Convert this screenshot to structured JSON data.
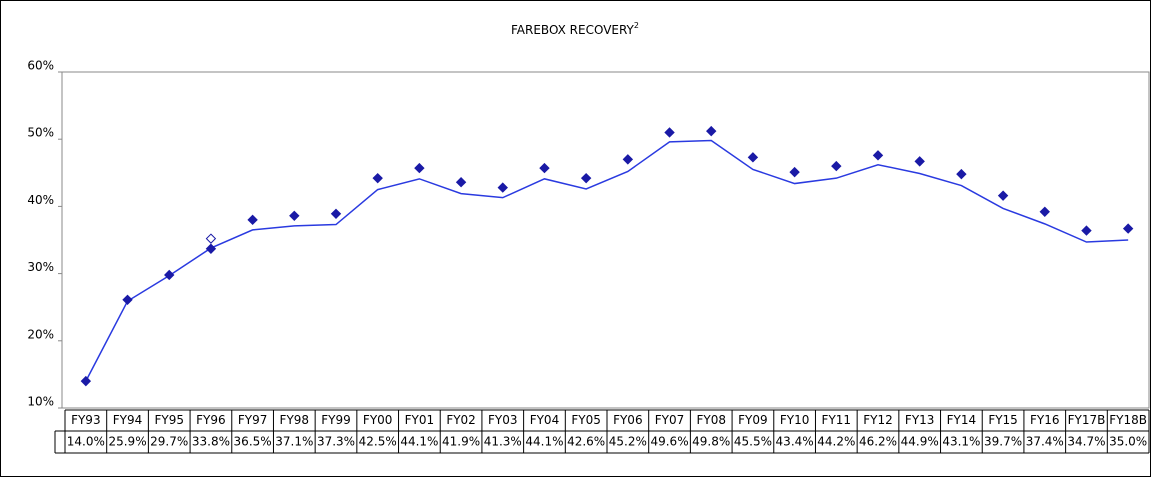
{
  "chart_data": {
    "type": "line",
    "title": "FAREBOX RECOVERY",
    "title_superscript": "2",
    "categories": [
      "FY93",
      "FY94",
      "FY95",
      "FY96",
      "FY97",
      "FY98",
      "FY99",
      "FY00",
      "FY01",
      "FY02",
      "FY03",
      "FY04",
      "FY05",
      "FY06",
      "FY07",
      "FY08",
      "FY09",
      "FY10",
      "FY11",
      "FY12",
      "FY13",
      "FY14",
      "FY15",
      "FY16",
      "FY17B",
      "FY18B"
    ],
    "series": [
      {
        "color": "#2a3ae0",
        "style": "line",
        "values": [
          14.0,
          25.9,
          29.7,
          33.8,
          36.5,
          37.1,
          37.3,
          42.5,
          44.1,
          41.9,
          41.3,
          44.1,
          42.6,
          45.2,
          49.6,
          49.8,
          45.5,
          43.4,
          44.2,
          46.2,
          44.9,
          43.1,
          39.7,
          37.4,
          34.7,
          35.0
        ],
        "value_labels": [
          "14.0%",
          "25.9%",
          "29.7%",
          "33.8%",
          "36.5%",
          "37.1%",
          "37.3%",
          "42.5%",
          "44.1%",
          "41.9%",
          "41.3%",
          "44.1%",
          "42.6%",
          "45.2%",
          "49.6%",
          "49.8%",
          "45.5%",
          "43.4%",
          "44.2%",
          "46.2%",
          "44.9%",
          "43.1%",
          "39.7%",
          "37.4%",
          "34.7%",
          "35.0%"
        ]
      },
      {
        "color": "#1a1aa6",
        "style": "marker",
        "values": [
          14.0,
          26.1,
          29.8,
          33.7,
          38.0,
          38.6,
          38.9,
          44.2,
          45.7,
          43.6,
          42.8,
          45.7,
          44.2,
          47.0,
          51.0,
          51.2,
          47.3,
          45.1,
          46.0,
          47.6,
          46.7,
          44.8,
          41.6,
          39.2,
          36.4,
          36.7
        ]
      },
      {
        "color": "#1a1aa6",
        "style": "hollow-marker",
        "values": [
          null,
          null,
          null,
          35.2,
          null,
          null,
          null,
          null,
          null,
          null,
          null,
          null,
          null,
          null,
          null,
          null,
          null,
          null,
          null,
          null,
          null,
          null,
          null,
          null,
          null,
          null
        ]
      }
    ],
    "ylim": [
      10,
      60
    ],
    "yticks": [
      {
        "value": 10,
        "label": "10%"
      },
      {
        "value": 20,
        "label": "20%"
      },
      {
        "value": 30,
        "label": "30%"
      },
      {
        "value": 40,
        "label": "40%"
      },
      {
        "value": 50,
        "label": "50%"
      },
      {
        "value": 60,
        "label": "60%"
      }
    ],
    "grid": false
  }
}
